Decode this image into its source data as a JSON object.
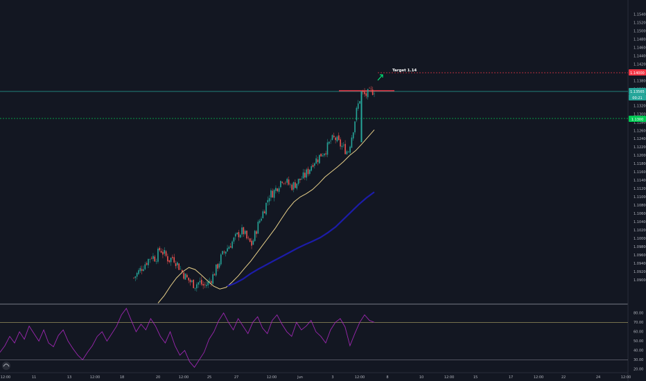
{
  "chart_data": {
    "type": "candlestick",
    "instrument_hint": "EURUSD",
    "price_axis": {
      "min": 1.0845,
      "max": 1.157,
      "ticks": [
        "1.15400",
        "1.15200",
        "1.15000",
        "1.14800",
        "1.14600",
        "1.14400",
        "1.14200",
        "1.14000",
        "1.13800",
        "1.13600",
        "1.13400",
        "1.13200",
        "1.13000",
        "1.12800",
        "1.12600",
        "1.12400",
        "1.12200",
        "1.12000",
        "1.11800",
        "1.11600",
        "1.11400",
        "1.11200",
        "1.11000",
        "1.10800",
        "1.10600",
        "1.10400",
        "1.10200",
        "1.10000",
        "1.09800",
        "1.09600",
        "1.09400",
        "1.09200",
        "1.09000"
      ]
    },
    "rsi_axis": {
      "min": 17,
      "max": 88,
      "ticks": [
        "80.00",
        "70.00",
        "60.00",
        "50.00",
        "40.00",
        "30.00",
        "20.00"
      ]
    },
    "time_axis": {
      "labels": [
        "12:00",
        "11",
        "13",
        "12:00",
        "18",
        "20",
        "12:00",
        "25",
        "27",
        "12:00",
        "Jun",
        "3",
        "12:00",
        "8",
        "10",
        "12:00",
        "15",
        "17",
        "12:00",
        "22",
        "24",
        "12:00"
      ]
    },
    "price_tags": {
      "target": "1.14000",
      "current": "1.13565",
      "countdown": "00:21",
      "green": "1.1300"
    },
    "levels": {
      "target": 1.14,
      "resistance": 1.1358,
      "support": 1.1297,
      "rsi_upper": 70,
      "rsi_lower": 30
    },
    "annotation": "Target 1.14",
    "colors": {
      "bull": "#26a69a",
      "bear": "#ef5350",
      "ma_fast": "#e8d08a",
      "ma_slow": "#1c1ca8",
      "rsi": "#9c27b0",
      "support": "#26a69a",
      "target": "#f23645",
      "green_tag": "#00c853"
    },
    "close_path": [
      1.0905,
      1.0918,
      1.0932,
      1.0945,
      1.0958,
      1.0952,
      1.0975,
      1.0962,
      1.0948,
      1.0955,
      1.0938,
      1.092,
      1.0905,
      1.0895,
      1.0888,
      1.0895,
      1.0885,
      1.0892,
      1.0908,
      1.093,
      1.0955,
      1.0972,
      1.0985,
      1.0998,
      1.1012,
      1.1018,
      1.0995,
      1.0985,
      1.102,
      1.105,
      1.1075,
      1.1105,
      1.1112,
      1.1128,
      1.1145,
      1.1135,
      1.1125,
      1.1132,
      1.1142,
      1.115,
      1.1165,
      1.1185,
      1.1192,
      1.1205,
      1.1215,
      1.1235,
      1.1242,
      1.1228,
      1.1218,
      1.1208,
      1.1255,
      1.131,
      1.135,
      1.1345,
      1.1352,
      1.1358
    ],
    "ma_fast_path": [
      1.084,
      1.0862,
      1.0885,
      1.0905,
      1.092,
      1.093,
      1.0925,
      1.0912,
      1.0898,
      1.0885,
      1.0878,
      1.0882,
      1.0895,
      1.091,
      1.0928,
      1.0945,
      1.0965,
      1.0985,
      1.1005,
      1.1025,
      1.1048,
      1.107,
      1.1088,
      1.11,
      1.1108,
      1.1118,
      1.1132,
      1.1148,
      1.116,
      1.1172,
      1.1185,
      1.12,
      1.1212,
      1.1228,
      1.1245,
      1.1262
    ],
    "ma_slow_path": [
      1.0885,
      1.0892,
      1.0902,
      1.0915,
      1.0926,
      1.0936,
      1.0946,
      1.0956,
      1.0966,
      1.0976,
      1.0985,
      1.0993,
      1.1002,
      1.1014,
      1.1028,
      1.1046,
      1.1064,
      1.1082,
      1.1098,
      1.1112
    ],
    "rsi_path": [
      38,
      45,
      55,
      48,
      60,
      52,
      66,
      58,
      50,
      62,
      48,
      44,
      56,
      62,
      50,
      42,
      35,
      30,
      38,
      45,
      55,
      60,
      50,
      58,
      66,
      78,
      85,
      72,
      60,
      68,
      62,
      74,
      66,
      55,
      48,
      60,
      45,
      35,
      40,
      28,
      22,
      30,
      38,
      52,
      60,
      72,
      80,
      70,
      62,
      74,
      66,
      58,
      70,
      76,
      64,
      58,
      72,
      78,
      68,
      60,
      55,
      70,
      62,
      66,
      72,
      60,
      55,
      48,
      62,
      70,
      74,
      65,
      45,
      58,
      70,
      78,
      72,
      70
    ]
  }
}
